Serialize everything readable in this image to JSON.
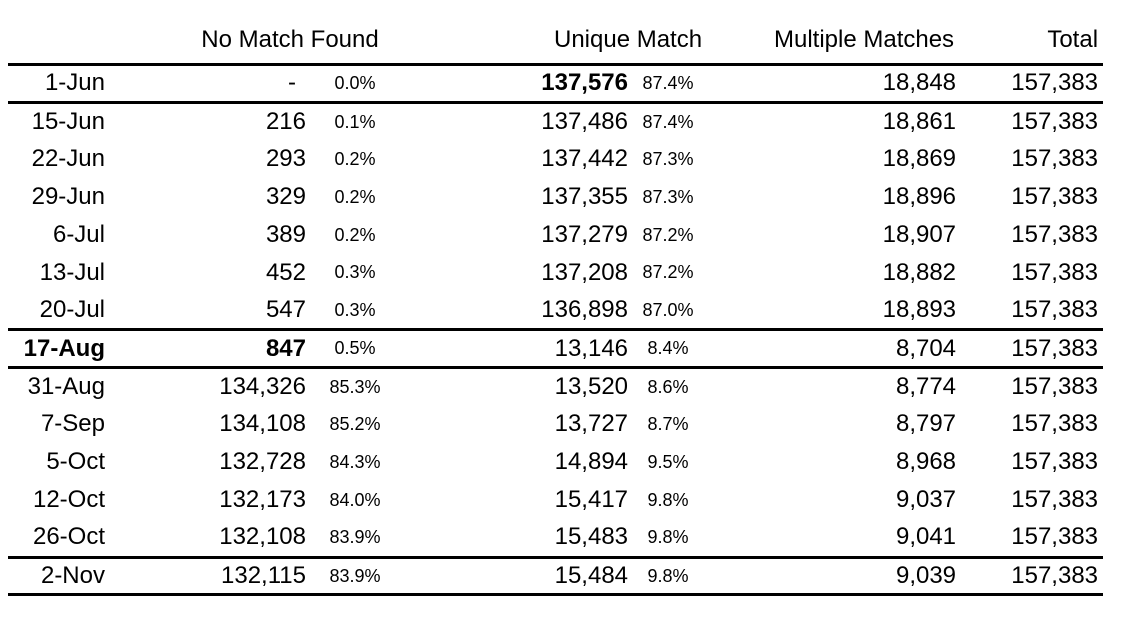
{
  "chart_data": {
    "type": "table",
    "headers": {
      "date": "",
      "no_match": "No Match Found",
      "unique": "Unique Match",
      "multiple": "Multiple Matches",
      "total": "Total"
    },
    "highlight": {
      "bold_row_date": "17-Aug",
      "bold_cells": [
        "row 1-Jun: unique count 137,576",
        "row 17-Aug: date and no-match count 847"
      ]
    },
    "rows": [
      {
        "date": "1-Jun",
        "nm": "-",
        "nm_pct": "0.0%",
        "um": "137,576",
        "um_pct": "87.4%",
        "mm": "18,848",
        "total": "157,383"
      },
      {
        "date": "15-Jun",
        "nm": "216",
        "nm_pct": "0.1%",
        "um": "137,486",
        "um_pct": "87.4%",
        "mm": "18,861",
        "total": "157,383"
      },
      {
        "date": "22-Jun",
        "nm": "293",
        "nm_pct": "0.2%",
        "um": "137,442",
        "um_pct": "87.3%",
        "mm": "18,869",
        "total": "157,383"
      },
      {
        "date": "29-Jun",
        "nm": "329",
        "nm_pct": "0.2%",
        "um": "137,355",
        "um_pct": "87.3%",
        "mm": "18,896",
        "total": "157,383"
      },
      {
        "date": "6-Jul",
        "nm": "389",
        "nm_pct": "0.2%",
        "um": "137,279",
        "um_pct": "87.2%",
        "mm": "18,907",
        "total": "157,383"
      },
      {
        "date": "13-Jul",
        "nm": "452",
        "nm_pct": "0.3%",
        "um": "137,208",
        "um_pct": "87.2%",
        "mm": "18,882",
        "total": "157,383"
      },
      {
        "date": "20-Jul",
        "nm": "547",
        "nm_pct": "0.3%",
        "um": "136,898",
        "um_pct": "87.0%",
        "mm": "18,893",
        "total": "157,383"
      },
      {
        "date": "17-Aug",
        "nm": "847",
        "nm_pct": "0.5%",
        "um": "13,146",
        "um_pct": "8.4%",
        "mm": "8,704",
        "total": "157,383"
      },
      {
        "date": "31-Aug",
        "nm": "134,326",
        "nm_pct": "85.3%",
        "um": "13,520",
        "um_pct": "8.6%",
        "mm": "8,774",
        "total": "157,383"
      },
      {
        "date": "7-Sep",
        "nm": "134,108",
        "nm_pct": "85.2%",
        "um": "13,727",
        "um_pct": "8.7%",
        "mm": "8,797",
        "total": "157,383"
      },
      {
        "date": "5-Oct",
        "nm": "132,728",
        "nm_pct": "84.3%",
        "um": "14,894",
        "um_pct": "9.5%",
        "mm": "8,968",
        "total": "157,383"
      },
      {
        "date": "12-Oct",
        "nm": "132,173",
        "nm_pct": "84.0%",
        "um": "15,417",
        "um_pct": "9.8%",
        "mm": "9,037",
        "total": "157,383"
      },
      {
        "date": "26-Oct",
        "nm": "132,108",
        "nm_pct": "83.9%",
        "um": "15,483",
        "um_pct": "9.8%",
        "mm": "9,041",
        "total": "157,383"
      },
      {
        "date": "2-Nov",
        "nm": "132,115",
        "nm_pct": "83.9%",
        "um": "15,484",
        "um_pct": "9.8%",
        "mm": "9,039",
        "total": "157,383"
      }
    ]
  }
}
